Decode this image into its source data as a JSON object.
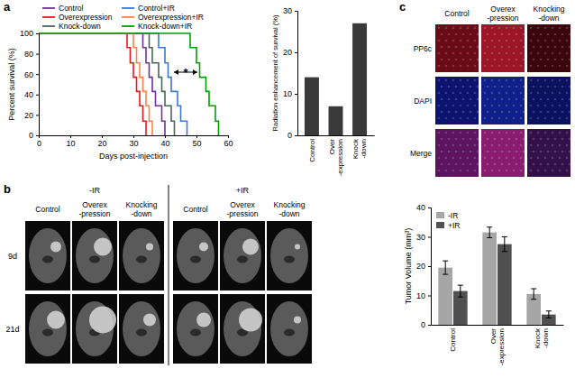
{
  "chart_data": [
    {
      "type": "line",
      "x_label": "Days post-injection",
      "y_label": "Percent survival (%)",
      "xlim": [
        0,
        60
      ],
      "xticks": [
        0,
        10,
        20,
        30,
        40,
        50,
        60
      ],
      "ylim": [
        0,
        100
      ],
      "yticks": [
        0,
        20,
        40,
        60,
        80,
        100
      ],
      "legend": "top",
      "annotations": [
        "*"
      ],
      "series": [
        {
          "name": "Control",
          "color": "#7030a0",
          "x": [
            0,
            33,
            34,
            35,
            36,
            37,
            39,
            40
          ],
          "values": [
            100,
            86,
            71,
            57,
            43,
            29,
            14,
            0
          ]
        },
        {
          "name": "Overexpression",
          "color": "#e41a1c",
          "x": [
            0,
            28,
            29,
            30,
            31,
            32,
            33,
            34
          ],
          "values": [
            100,
            86,
            71,
            57,
            43,
            29,
            14,
            0
          ]
        },
        {
          "name": "Knock-down",
          "color": "#4a6656",
          "x": [
            0,
            35,
            36,
            38,
            39,
            40,
            42,
            43
          ],
          "values": [
            100,
            86,
            71,
            57,
            43,
            29,
            14,
            0
          ]
        },
        {
          "name": "Control+IR",
          "color": "#3c78d8",
          "x": [
            0,
            38,
            40,
            41,
            42,
            44,
            45,
            47
          ],
          "values": [
            100,
            86,
            71,
            57,
            43,
            29,
            14,
            0
          ]
        },
        {
          "name": "Overexpression+IR",
          "color": "#ff8040",
          "x": [
            0,
            30,
            31,
            32,
            33,
            34,
            35,
            36
          ],
          "values": [
            100,
            86,
            71,
            57,
            43,
            29,
            14,
            0
          ]
        },
        {
          "name": "Knock-down+IR",
          "color": "#00a000",
          "x": [
            0,
            48,
            50,
            51,
            53,
            54,
            56,
            57
          ],
          "values": [
            100,
            86,
            71,
            57,
            43,
            29,
            14,
            0
          ]
        }
      ]
    },
    {
      "type": "bar",
      "y_label": "Radiation enhancement of survival (%)",
      "categories": [
        "Control",
        "Over\n-expression",
        "Knock\n-down"
      ],
      "values": [
        14,
        7,
        27
      ],
      "color": "#3a3a3a",
      "ylim": [
        0,
        30
      ],
      "yticks": [
        0,
        10,
        20,
        30
      ]
    },
    {
      "type": "bar",
      "y_label": "Tumor Volume (mm³)",
      "categories": [
        "Control",
        "Over\n-expression",
        "Knock\n-down"
      ],
      "ylim": [
        0,
        40
      ],
      "yticks": [
        0,
        10,
        20,
        30,
        40
      ],
      "legend": "upper left",
      "series": [
        {
          "name": "-IR",
          "color": "#a6a6a6",
          "values": [
            19.5,
            31.5,
            10.5
          ],
          "errors": [
            2.3,
            1.8,
            1.8
          ]
        },
        {
          "name": "+IR",
          "color": "#505050",
          "values": [
            11.5,
            27.5,
            3.5
          ],
          "errors": [
            2.0,
            2.5,
            1.2
          ]
        }
      ]
    }
  ],
  "panel_labels": [
    "a",
    "b",
    "c"
  ],
  "panel_b": {
    "groups": [
      "-IR",
      "+IR"
    ],
    "columns": [
      "Control",
      "Overex\n-pression",
      "Knocking\n-down"
    ],
    "rows": [
      "9d",
      "21d"
    ]
  },
  "panel_c": {
    "columns": [
      "Control",
      "Overex\n-pression",
      "Knocking\n-down"
    ],
    "rows": [
      "PP6c",
      "DAPI",
      "Merge"
    ]
  }
}
